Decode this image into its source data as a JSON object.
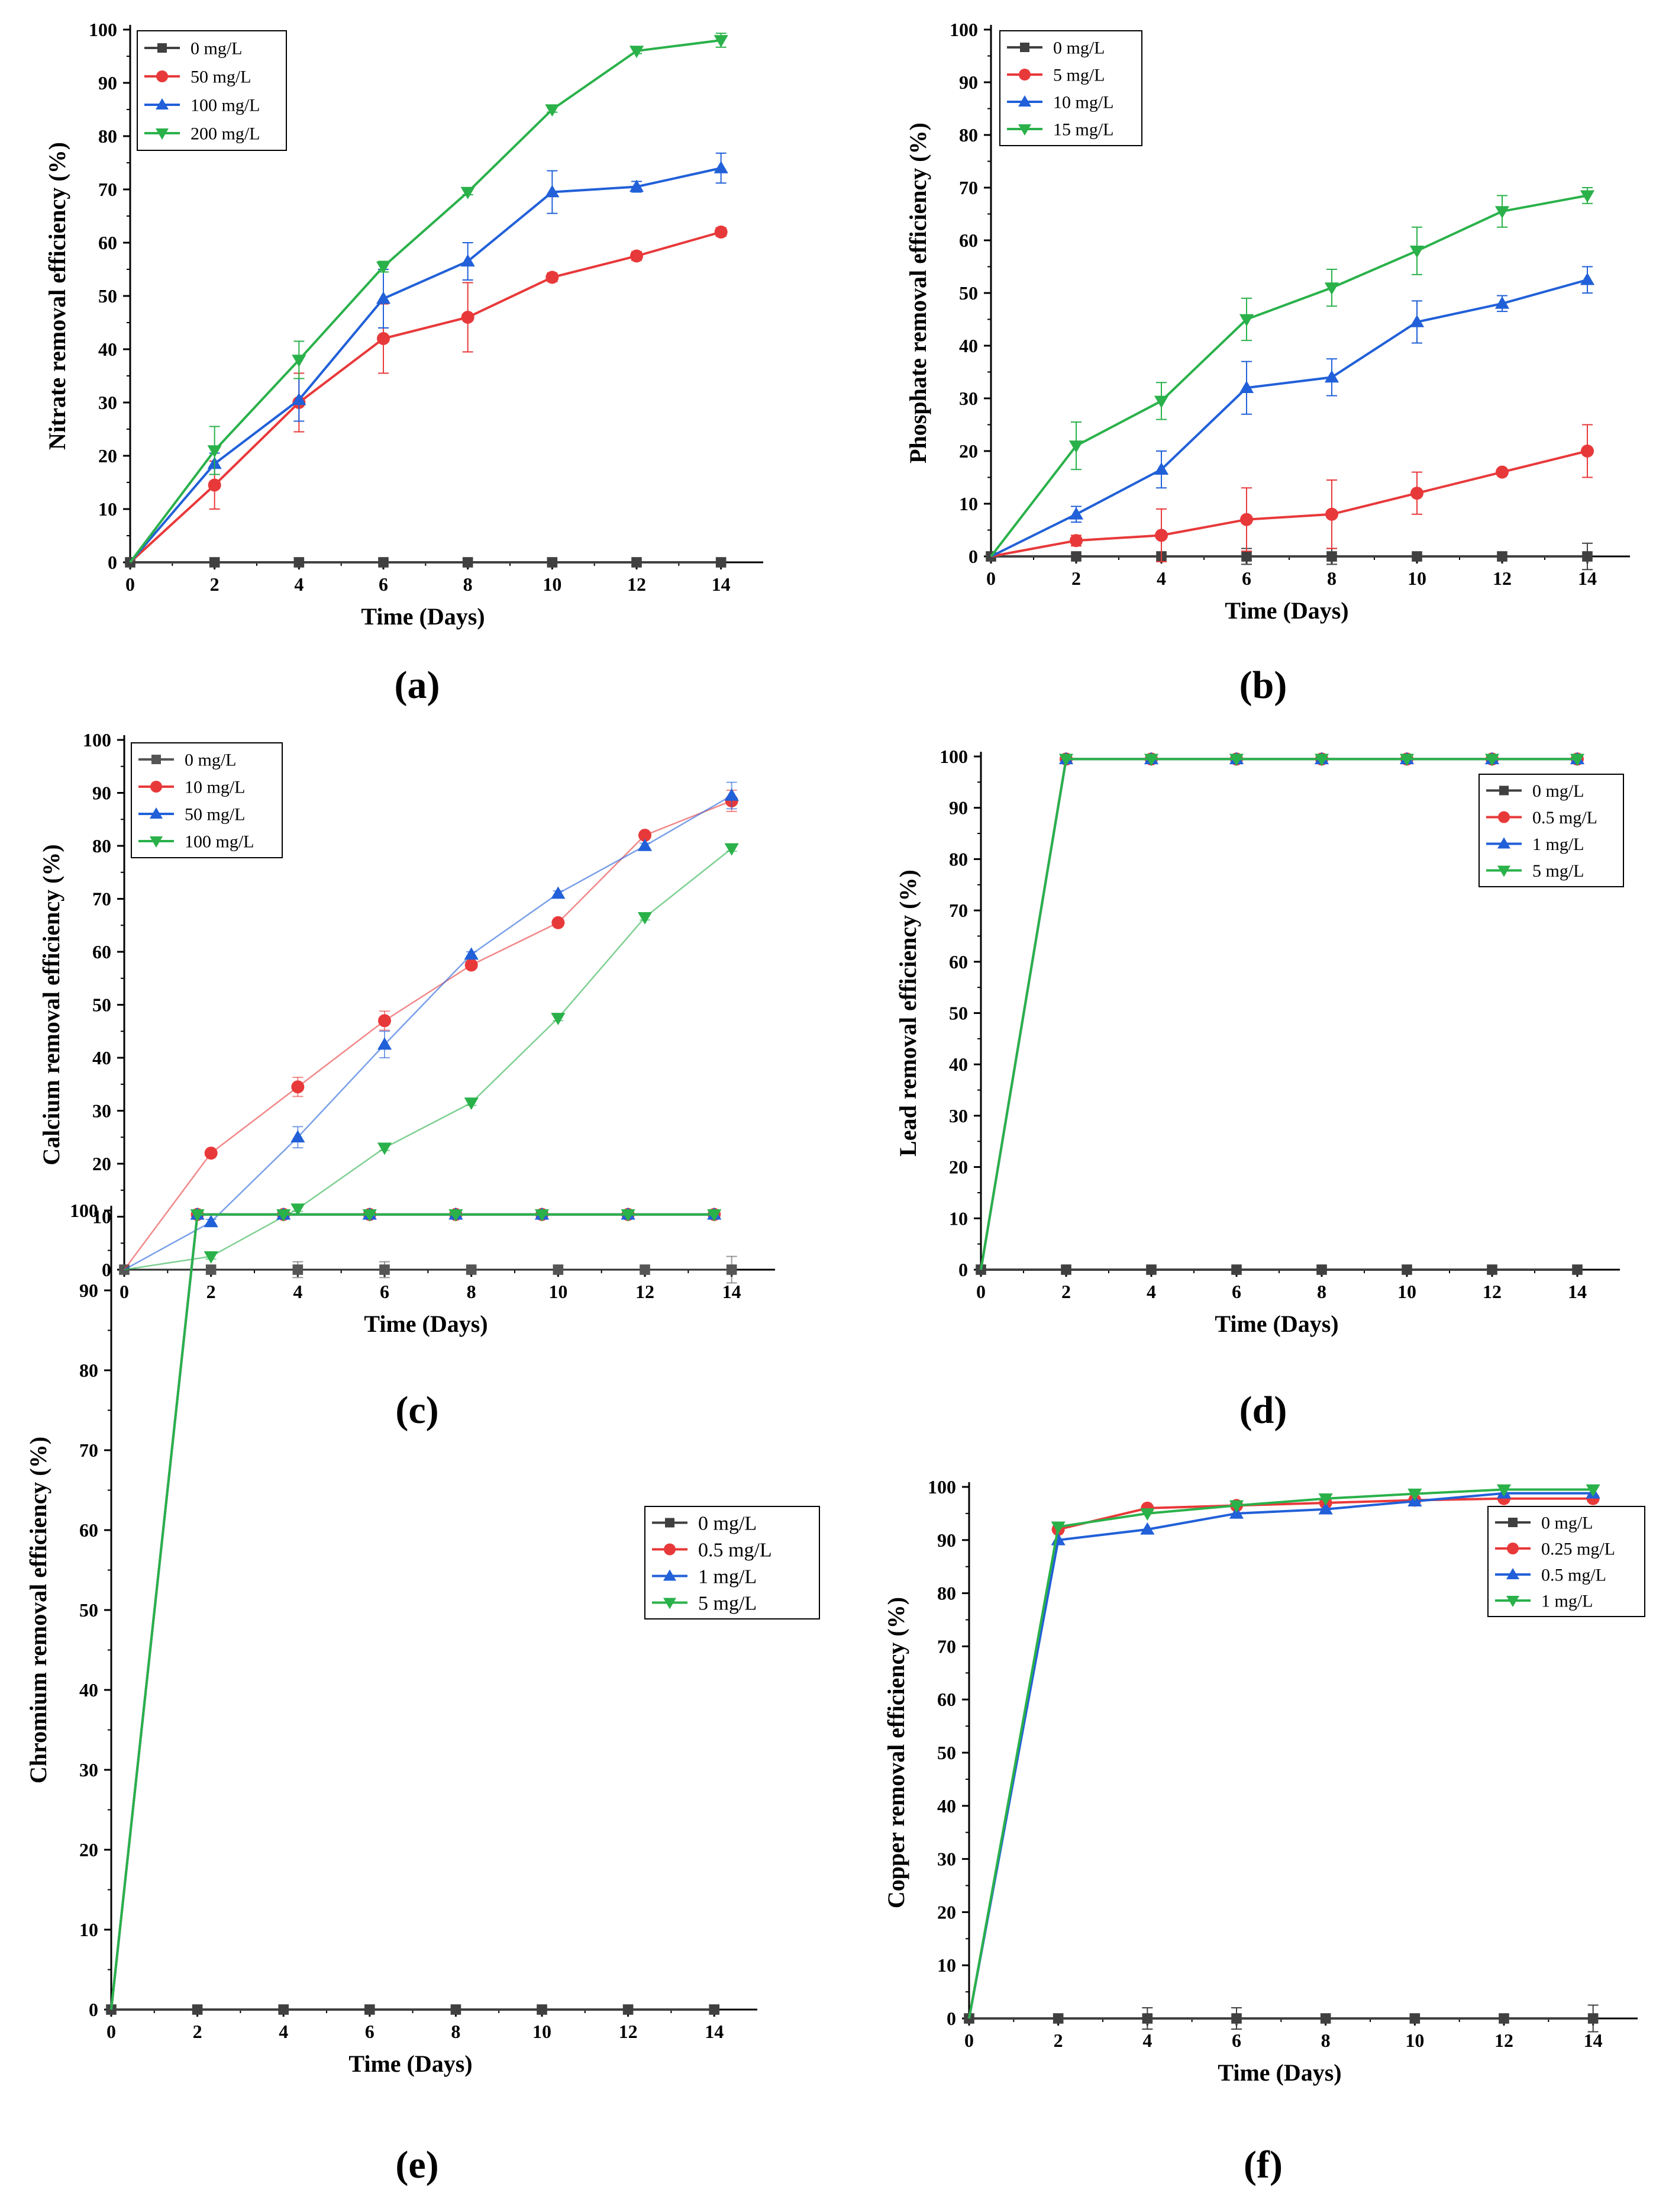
{
  "figure": {
    "panel_labels": [
      "(a)",
      "(b)",
      "(c)",
      "(d)",
      "(e)",
      "(f)"
    ]
  },
  "chart_data": [
    {
      "panel": "a",
      "type": "line",
      "xlabel": "Time (Days)",
      "ylabel": "Nitrate removal efficiency (%)",
      "xlim": [
        0,
        15
      ],
      "ylim": [
        0,
        100
      ],
      "xticks": [
        0,
        2,
        4,
        6,
        8,
        10,
        12,
        14
      ],
      "yticks": [
        0,
        10,
        20,
        30,
        40,
        50,
        60,
        70,
        80,
        90,
        100
      ],
      "legend_position": "top-left",
      "x": [
        0,
        2,
        4,
        6,
        8,
        10,
        12,
        14
      ],
      "series": [
        {
          "name": "0 mg/L",
          "color": "#404040",
          "marker": "square",
          "values": [
            0,
            0,
            0,
            0,
            0,
            0,
            0,
            0
          ],
          "errors": [
            0,
            0,
            0,
            0,
            0,
            0,
            0,
            0
          ]
        },
        {
          "name": "50 mg/L",
          "color": "#e8393a",
          "marker": "circle",
          "values": [
            0,
            14.5,
            30,
            42,
            46,
            53.5,
            57.5,
            62
          ],
          "errors": [
            0,
            4.5,
            5.5,
            6.5,
            6.5,
            0.8,
            0.8,
            0.8
          ]
        },
        {
          "name": "100 mg/L",
          "color": "#2160d8",
          "marker": "triangle-up",
          "values": [
            0,
            18.5,
            30.5,
            49.5,
            56.5,
            69.5,
            70.5,
            74
          ],
          "errors": [
            0,
            2,
            4,
            5.5,
            3.5,
            4,
            1,
            2.8
          ]
        },
        {
          "name": "200 mg/L",
          "color": "#2ab14a",
          "marker": "triangle-down",
          "values": [
            0,
            21,
            38,
            55.5,
            69.5,
            85,
            96,
            98
          ],
          "errors": [
            0,
            4.5,
            3.5,
            1,
            0.5,
            0.5,
            0.5,
            1.3
          ]
        }
      ]
    },
    {
      "panel": "b",
      "type": "line",
      "xlabel": "Time (Days)",
      "ylabel": "Phosphate removal efficiency (%)",
      "xlim": [
        0,
        15
      ],
      "ylim": [
        0,
        100
      ],
      "xticks": [
        0,
        2,
        4,
        6,
        8,
        10,
        12,
        14
      ],
      "yticks": [
        0,
        10,
        20,
        30,
        40,
        50,
        60,
        70,
        80,
        90,
        100
      ],
      "legend_position": "top-left",
      "x": [
        0,
        2,
        4,
        6,
        8,
        10,
        12,
        14
      ],
      "series": [
        {
          "name": "0 mg/L",
          "color": "#404040",
          "marker": "square",
          "values": [
            0,
            0,
            0,
            0,
            0,
            0,
            0,
            0
          ],
          "errors": [
            0,
            0,
            0,
            1.5,
            1.5,
            0,
            0,
            2.5
          ]
        },
        {
          "name": "5 mg/L",
          "color": "#e8393a",
          "marker": "circle",
          "values": [
            0,
            3,
            4,
            7,
            8,
            12,
            16,
            20
          ],
          "errors": [
            0,
            1,
            5,
            6,
            6.5,
            4,
            0.5,
            5
          ]
        },
        {
          "name": "10 mg/L",
          "color": "#2160d8",
          "marker": "triangle-up",
          "values": [
            0,
            8,
            16.5,
            32,
            34,
            44.5,
            48,
            52.5
          ],
          "errors": [
            0,
            1.5,
            3.5,
            5,
            3.5,
            4,
            1.5,
            2.5
          ]
        },
        {
          "name": "15 mg/L",
          "color": "#2ab14a",
          "marker": "triangle-down",
          "values": [
            0,
            21,
            29.5,
            45,
            51,
            58,
            65.5,
            68.5
          ],
          "errors": [
            0,
            4.5,
            3.5,
            4,
            3.5,
            4.5,
            3,
            1.5
          ]
        }
      ]
    },
    {
      "panel": "c",
      "type": "line",
      "xlabel": "Time (Days)",
      "ylabel": "Calcium removal efficiency (%)",
      "xlim": [
        0,
        15
      ],
      "ylim": [
        0,
        100
      ],
      "xticks": [
        0,
        2,
        4,
        6,
        8,
        10,
        12,
        14
      ],
      "yticks": [
        0,
        10,
        20,
        30,
        40,
        50,
        60,
        70,
        80,
        90,
        100
      ],
      "legend_position": "top-left",
      "x": [
        0,
        2,
        4,
        6,
        8,
        10,
        12,
        14
      ],
      "series": [
        {
          "name": "0 mg/L",
          "color": "#555555",
          "marker": "square",
          "values": [
            0,
            0,
            0,
            0,
            0,
            0,
            0,
            0
          ],
          "errors": [
            0,
            0,
            1.5,
            1.5,
            0,
            0,
            0,
            2.5
          ]
        },
        {
          "name": "10 mg/L",
          "color": "#e8393a",
          "marker": "circle",
          "values": [
            0,
            22,
            34.5,
            47,
            57.5,
            65.5,
            82,
            88.5
          ],
          "errors": [
            0,
            0.5,
            1.8,
            1.8,
            0.5,
            0.5,
            0.5,
            2
          ]
        },
        {
          "name": "50 mg/L",
          "color": "#2160d8",
          "marker": "triangle-up",
          "values": [
            0,
            9,
            25,
            42.5,
            59.5,
            71,
            80,
            89.5
          ],
          "errors": [
            0,
            0.5,
            2,
            2.5,
            0.5,
            0.5,
            0.5,
            2.5
          ]
        },
        {
          "name": "100 mg/L",
          "color": "#2ab14a",
          "marker": "triangle-down",
          "values": [
            0,
            2.5,
            11.5,
            23,
            31.5,
            47.5,
            66.5,
            79.5
          ],
          "errors": [
            0,
            0.5,
            0.5,
            0.5,
            0.5,
            0.5,
            0.5,
            0.5
          ]
        }
      ]
    },
    {
      "panel": "d",
      "type": "line",
      "xlabel": "Time (Days)",
      "ylabel": "Lead removal efficiency (%)",
      "xlim": [
        0,
        15
      ],
      "ylim": [
        0,
        100
      ],
      "xticks": [
        0,
        2,
        4,
        6,
        8,
        10,
        12,
        14
      ],
      "yticks": [
        0,
        10,
        20,
        30,
        40,
        50,
        60,
        70,
        80,
        90,
        100
      ],
      "legend_position": "top-right",
      "x": [
        0,
        2,
        4,
        6,
        8,
        10,
        12,
        14
      ],
      "series": [
        {
          "name": "0 mg/L",
          "color": "#404040",
          "marker": "square",
          "values": [
            0,
            0,
            0,
            0,
            0,
            0,
            0,
            0
          ],
          "errors": [
            0,
            0,
            0,
            0,
            0,
            0,
            0,
            0
          ]
        },
        {
          "name": "0.5 mg/L",
          "color": "#e8393a",
          "marker": "circle",
          "values": [
            0,
            99.5,
            99.5,
            99.5,
            99.5,
            99.5,
            99.5,
            99.5
          ],
          "errors": [
            0,
            0,
            0,
            0,
            0,
            0,
            0,
            0
          ]
        },
        {
          "name": "1 mg/L",
          "color": "#2160d8",
          "marker": "triangle-up",
          "values": [
            0,
            99.5,
            99.5,
            99.5,
            99.5,
            99.5,
            99.5,
            99.5
          ],
          "errors": [
            0,
            0,
            0,
            0,
            0,
            0,
            0,
            0
          ]
        },
        {
          "name": "5 mg/L",
          "color": "#2ab14a",
          "marker": "triangle-down",
          "values": [
            0,
            99.5,
            99.5,
            99.5,
            99.5,
            99.5,
            99.5,
            99.5
          ],
          "errors": [
            0,
            0,
            0,
            0,
            0,
            0,
            0,
            0
          ]
        }
      ]
    },
    {
      "panel": "e",
      "type": "line",
      "xlabel": "Time (Days)",
      "ylabel": "Chromium removal efficiency (%)",
      "xlim": [
        0,
        15
      ],
      "ylim": [
        0,
        100
      ],
      "xticks": [
        0,
        2,
        4,
        6,
        8,
        10,
        12,
        14
      ],
      "yticks": [
        0,
        10,
        20,
        30,
        40,
        50,
        60,
        70,
        80,
        90,
        100
      ],
      "legend_position": "top-right",
      "x": [
        0,
        2,
        4,
        6,
        8,
        10,
        12,
        14
      ],
      "series": [
        {
          "name": "0 mg/L",
          "color": "#404040",
          "marker": "square",
          "values": [
            0,
            0,
            0,
            0,
            0,
            0,
            0,
            0
          ],
          "errors": [
            0,
            0,
            0,
            0,
            0,
            0,
            0,
            0
          ]
        },
        {
          "name": "0.5 mg/L",
          "color": "#e8393a",
          "marker": "circle",
          "values": [
            0,
            99.5,
            99.5,
            99.5,
            99.5,
            99.5,
            99.5,
            99.5
          ],
          "errors": [
            0,
            0,
            0,
            0,
            0,
            0,
            0,
            0
          ]
        },
        {
          "name": "1 mg/L",
          "color": "#2160d8",
          "marker": "triangle-up",
          "values": [
            0,
            99.5,
            99.5,
            99.5,
            99.5,
            99.5,
            99.5,
            99.5
          ],
          "errors": [
            0,
            0,
            0,
            0,
            0,
            0,
            0,
            0
          ]
        },
        {
          "name": "5 mg/L",
          "color": "#2ab14a",
          "marker": "triangle-down",
          "values": [
            0,
            99.5,
            99.5,
            99.5,
            99.5,
            99.5,
            99.5,
            99.5
          ],
          "errors": [
            0,
            0,
            0,
            0,
            0,
            0,
            0,
            0
          ]
        }
      ]
    },
    {
      "panel": "f",
      "type": "line",
      "xlabel": "Time (Days)",
      "ylabel": "Copper removal efficiency (%)",
      "xlim": [
        0,
        15
      ],
      "ylim": [
        0,
        100
      ],
      "xticks": [
        0,
        2,
        4,
        6,
        8,
        10,
        12,
        14
      ],
      "yticks": [
        0,
        10,
        20,
        30,
        40,
        50,
        60,
        70,
        80,
        90,
        100
      ],
      "legend_position": "top-right",
      "x": [
        0,
        2,
        4,
        6,
        8,
        10,
        12,
        14
      ],
      "series": [
        {
          "name": "0 mg/L",
          "color": "#404040",
          "marker": "square",
          "values": [
            0,
            0,
            0,
            0,
            0,
            0,
            0,
            0
          ],
          "errors": [
            0,
            0,
            2,
            2,
            0,
            0,
            0,
            2.5
          ]
        },
        {
          "name": "0.25 mg/L",
          "color": "#e8393a",
          "marker": "circle",
          "values": [
            0,
            92,
            96,
            96.5,
            97,
            97.5,
            97.8,
            97.8
          ],
          "errors": [
            0,
            0,
            0,
            0,
            0,
            0,
            0,
            0
          ]
        },
        {
          "name": "0.5 mg/L",
          "color": "#2160d8",
          "marker": "triangle-up",
          "values": [
            0,
            90,
            92,
            95,
            95.8,
            97.3,
            98.8,
            98.8
          ],
          "errors": [
            0,
            0,
            0,
            0,
            0,
            0,
            0,
            0
          ]
        },
        {
          "name": "1 mg/L",
          "color": "#2ab14a",
          "marker": "triangle-down",
          "values": [
            0,
            92.5,
            95,
            96.5,
            97.8,
            98.7,
            99.5,
            99.5
          ],
          "errors": [
            0,
            0,
            0,
            0,
            0,
            0,
            0,
            0
          ]
        }
      ]
    }
  ]
}
